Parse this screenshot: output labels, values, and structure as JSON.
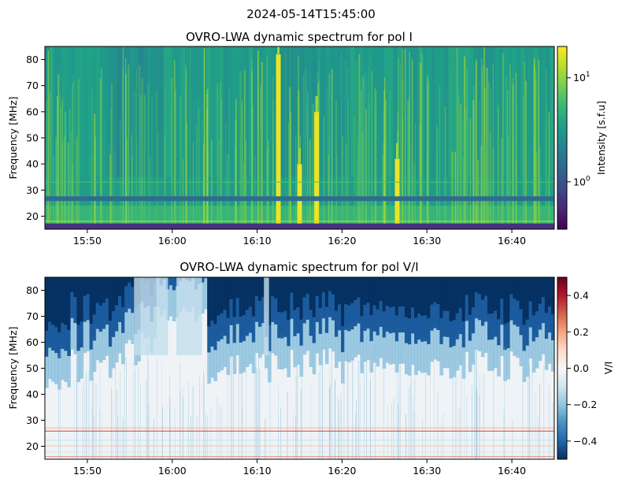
{
  "figure": {
    "suptitle": "2024-05-14T15:45:00"
  },
  "colors": {
    "viridis": [
      "#440154",
      "#482777",
      "#3e4a89",
      "#31688e",
      "#26828e",
      "#1f9e89",
      "#35b779",
      "#6ece58",
      "#b5de2b",
      "#fde725"
    ],
    "rdbu_r": [
      "#053061",
      "#2166ac",
      "#4393c3",
      "#92c5de",
      "#d1e5f0",
      "#f7f7f7",
      "#fddbc7",
      "#f4a582",
      "#d6604d",
      "#b2182b",
      "#67001f"
    ]
  },
  "chart_data": [
    {
      "type": "heatmap",
      "title": "OVRO-LWA dynamic spectrum for pol I",
      "xlabel": "",
      "ylabel": "Frequency [MHz]",
      "x_range": [
        "15:45",
        "16:45"
      ],
      "x_ticks": [
        "15:50",
        "16:00",
        "16:10",
        "16:20",
        "16:30",
        "16:40"
      ],
      "x_tick_minutes": [
        5,
        15,
        25,
        35,
        45,
        55
      ],
      "ylim": [
        15,
        85
      ],
      "y_ticks": [
        20,
        30,
        40,
        50,
        60,
        70,
        80
      ],
      "colorbar": {
        "label": "Intensity [s.f.u]",
        "scale": "log",
        "range": [
          0.35,
          20
        ],
        "ticks": [
          "10^0",
          "10^1"
        ],
        "tick_values": [
          1,
          10
        ],
        "colormap": "viridis"
      },
      "features": {
        "bright_bursts_time": [
          "16:12:30",
          "16:15:00",
          "16:17:00",
          "16:26:30"
        ],
        "bright_bursts_freq_mhz": [
          [
            15,
            82
          ],
          [
            15,
            40
          ],
          [
            15,
            60
          ],
          [
            15,
            42
          ]
        ],
        "horizontal_bands_mhz": [
          26,
          27,
          33,
          17
        ]
      }
    },
    {
      "type": "heatmap",
      "title": "OVRO-LWA dynamic spectrum for pol V/I",
      "xlabel": "",
      "ylabel": "Frequency [MHz]",
      "x_range": [
        "15:45",
        "16:45"
      ],
      "x_ticks": [
        "15:50",
        "16:00",
        "16:10",
        "16:20",
        "16:30",
        "16:40"
      ],
      "x_tick_minutes": [
        5,
        15,
        25,
        35,
        45,
        55
      ],
      "ylim": [
        15,
        85
      ],
      "y_ticks": [
        20,
        30,
        40,
        50,
        60,
        70,
        80
      ],
      "colorbar": {
        "label": "V/I",
        "scale": "linear",
        "range": [
          -0.5,
          0.5
        ],
        "ticks": [
          "0.4",
          "0.2",
          "0.0",
          "−0.2",
          "−0.4"
        ],
        "tick_values": [
          0.4,
          0.2,
          0.0,
          -0.2,
          -0.4
        ],
        "colormap": "RdBu_r"
      },
      "features": {
        "strongly_negative_above_mhz": 62,
        "near_zero_below_mhz": 50,
        "red_band_mhz": 26
      }
    }
  ]
}
